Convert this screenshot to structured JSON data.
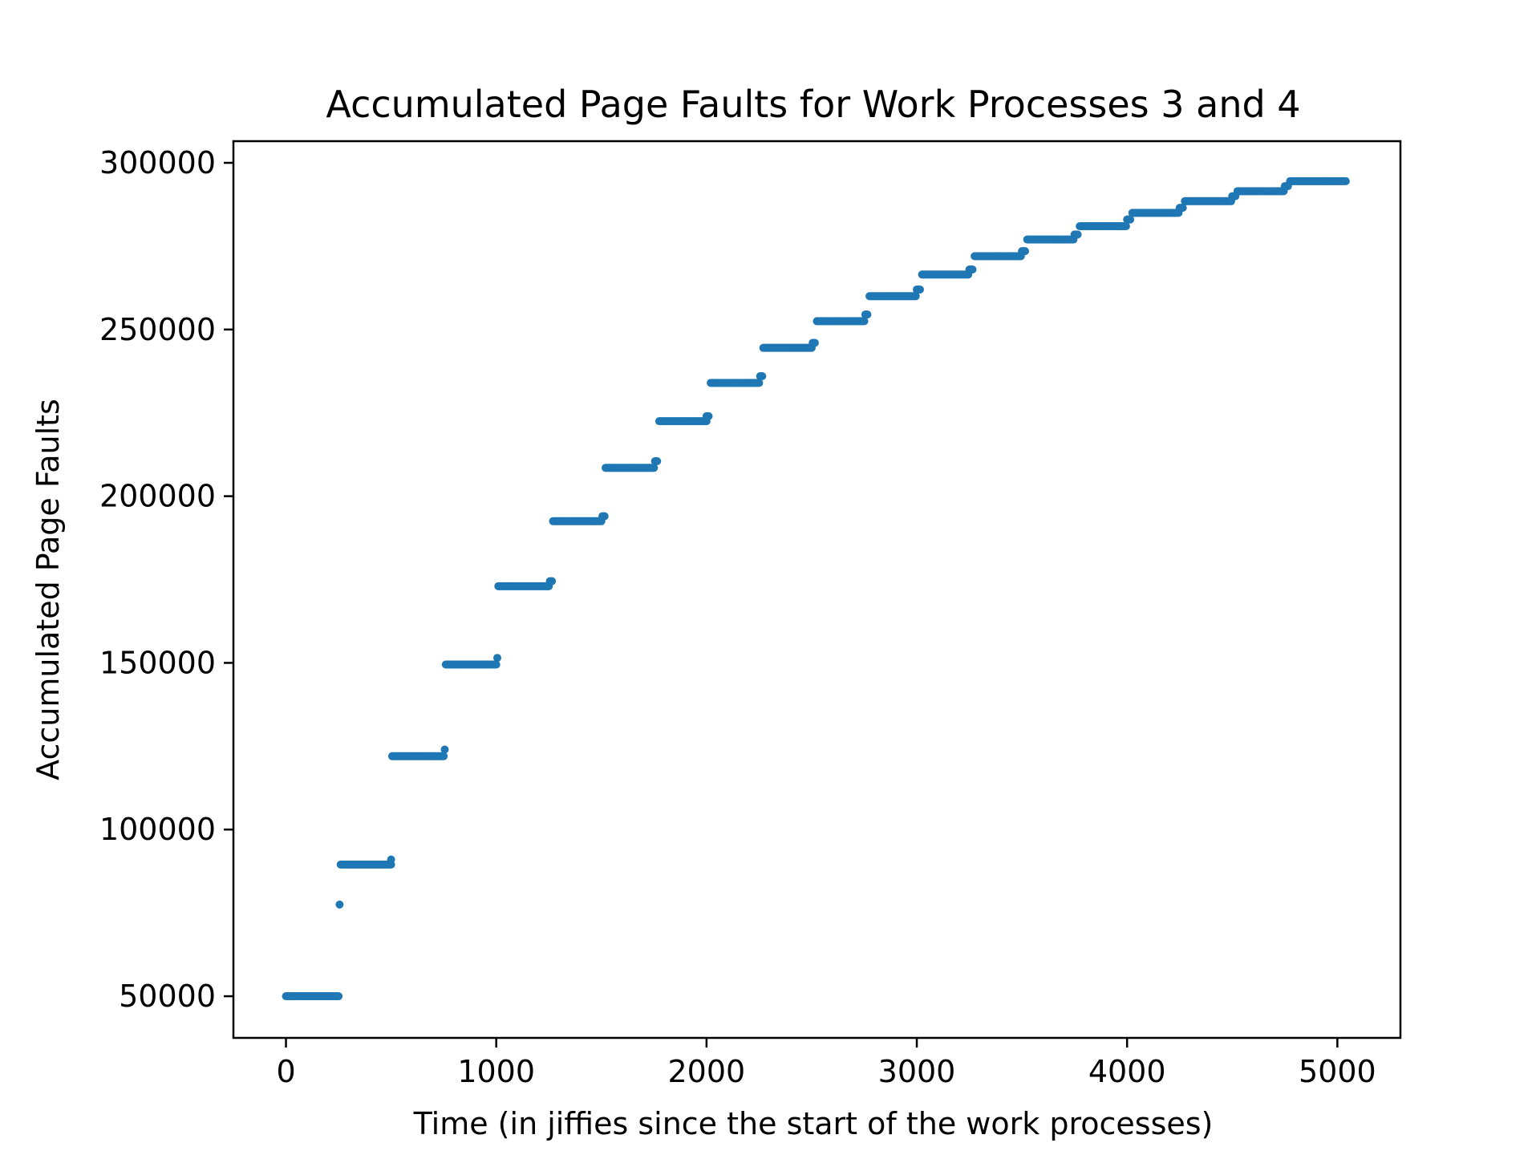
{
  "chart_data": {
    "type": "scatter",
    "title": "Accumulated Page Faults for Work Processes 3 and 4",
    "xlabel": "Time (in jiffies since the start of the work processes)",
    "ylabel": "Accumulated Page Faults",
    "xlim": [
      -250,
      5300
    ],
    "ylim": [
      37500,
      306500
    ],
    "x_ticks": [
      0,
      1000,
      2000,
      3000,
      4000,
      5000
    ],
    "x_tick_labels": [
      "0",
      "1000",
      "2000",
      "3000",
      "4000",
      "5000"
    ],
    "y_ticks": [
      50000,
      100000,
      150000,
      200000,
      250000,
      300000
    ],
    "y_tick_labels": [
      "50000",
      "100000",
      "150000",
      "200000",
      "250000",
      "300000"
    ],
    "grid": false,
    "marker_color": "#1f77b4",
    "segments": [
      {
        "x_start": 0,
        "x_end": 250,
        "y": 50000
      },
      {
        "x_start": 255,
        "x_end": 255,
        "y": 77500
      },
      {
        "x_start": 260,
        "x_end": 500,
        "y": 89500
      },
      {
        "x_start": 500,
        "x_end": 500,
        "y": 91000
      },
      {
        "x_start": 505,
        "x_end": 750,
        "y": 122000
      },
      {
        "x_start": 755,
        "x_end": 755,
        "y": 124000
      },
      {
        "x_start": 760,
        "x_end": 1000,
        "y": 149500
      },
      {
        "x_start": 1005,
        "x_end": 1005,
        "y": 151500
      },
      {
        "x_start": 1010,
        "x_end": 1250,
        "y": 173000
      },
      {
        "x_start": 1255,
        "x_end": 1265,
        "y": 174500
      },
      {
        "x_start": 1270,
        "x_end": 1500,
        "y": 192500
      },
      {
        "x_start": 1505,
        "x_end": 1515,
        "y": 194000
      },
      {
        "x_start": 1520,
        "x_end": 1750,
        "y": 208500
      },
      {
        "x_start": 1755,
        "x_end": 1765,
        "y": 210500
      },
      {
        "x_start": 1775,
        "x_end": 2000,
        "y": 222500
      },
      {
        "x_start": 2000,
        "x_end": 2010,
        "y": 224000
      },
      {
        "x_start": 2020,
        "x_end": 2250,
        "y": 234000
      },
      {
        "x_start": 2255,
        "x_end": 2265,
        "y": 236000
      },
      {
        "x_start": 2270,
        "x_end": 2500,
        "y": 244500
      },
      {
        "x_start": 2505,
        "x_end": 2515,
        "y": 246000
      },
      {
        "x_start": 2525,
        "x_end": 2750,
        "y": 252500
      },
      {
        "x_start": 2755,
        "x_end": 2765,
        "y": 254500
      },
      {
        "x_start": 2775,
        "x_end": 2995,
        "y": 260000
      },
      {
        "x_start": 3000,
        "x_end": 3015,
        "y": 262000
      },
      {
        "x_start": 3025,
        "x_end": 3245,
        "y": 266500
      },
      {
        "x_start": 3250,
        "x_end": 3265,
        "y": 268000
      },
      {
        "x_start": 3275,
        "x_end": 3495,
        "y": 272000
      },
      {
        "x_start": 3500,
        "x_end": 3515,
        "y": 273500
      },
      {
        "x_start": 3525,
        "x_end": 3745,
        "y": 277000
      },
      {
        "x_start": 3750,
        "x_end": 3765,
        "y": 278500
      },
      {
        "x_start": 3775,
        "x_end": 3995,
        "y": 281000
      },
      {
        "x_start": 4000,
        "x_end": 4015,
        "y": 283000
      },
      {
        "x_start": 4025,
        "x_end": 4245,
        "y": 285000
      },
      {
        "x_start": 4250,
        "x_end": 4265,
        "y": 286500
      },
      {
        "x_start": 4275,
        "x_end": 4495,
        "y": 288500
      },
      {
        "x_start": 4500,
        "x_end": 4515,
        "y": 290000
      },
      {
        "x_start": 4525,
        "x_end": 4745,
        "y": 291500
      },
      {
        "x_start": 4750,
        "x_end": 4765,
        "y": 293000
      },
      {
        "x_start": 4775,
        "x_end": 5040,
        "y": 294500
      }
    ]
  }
}
